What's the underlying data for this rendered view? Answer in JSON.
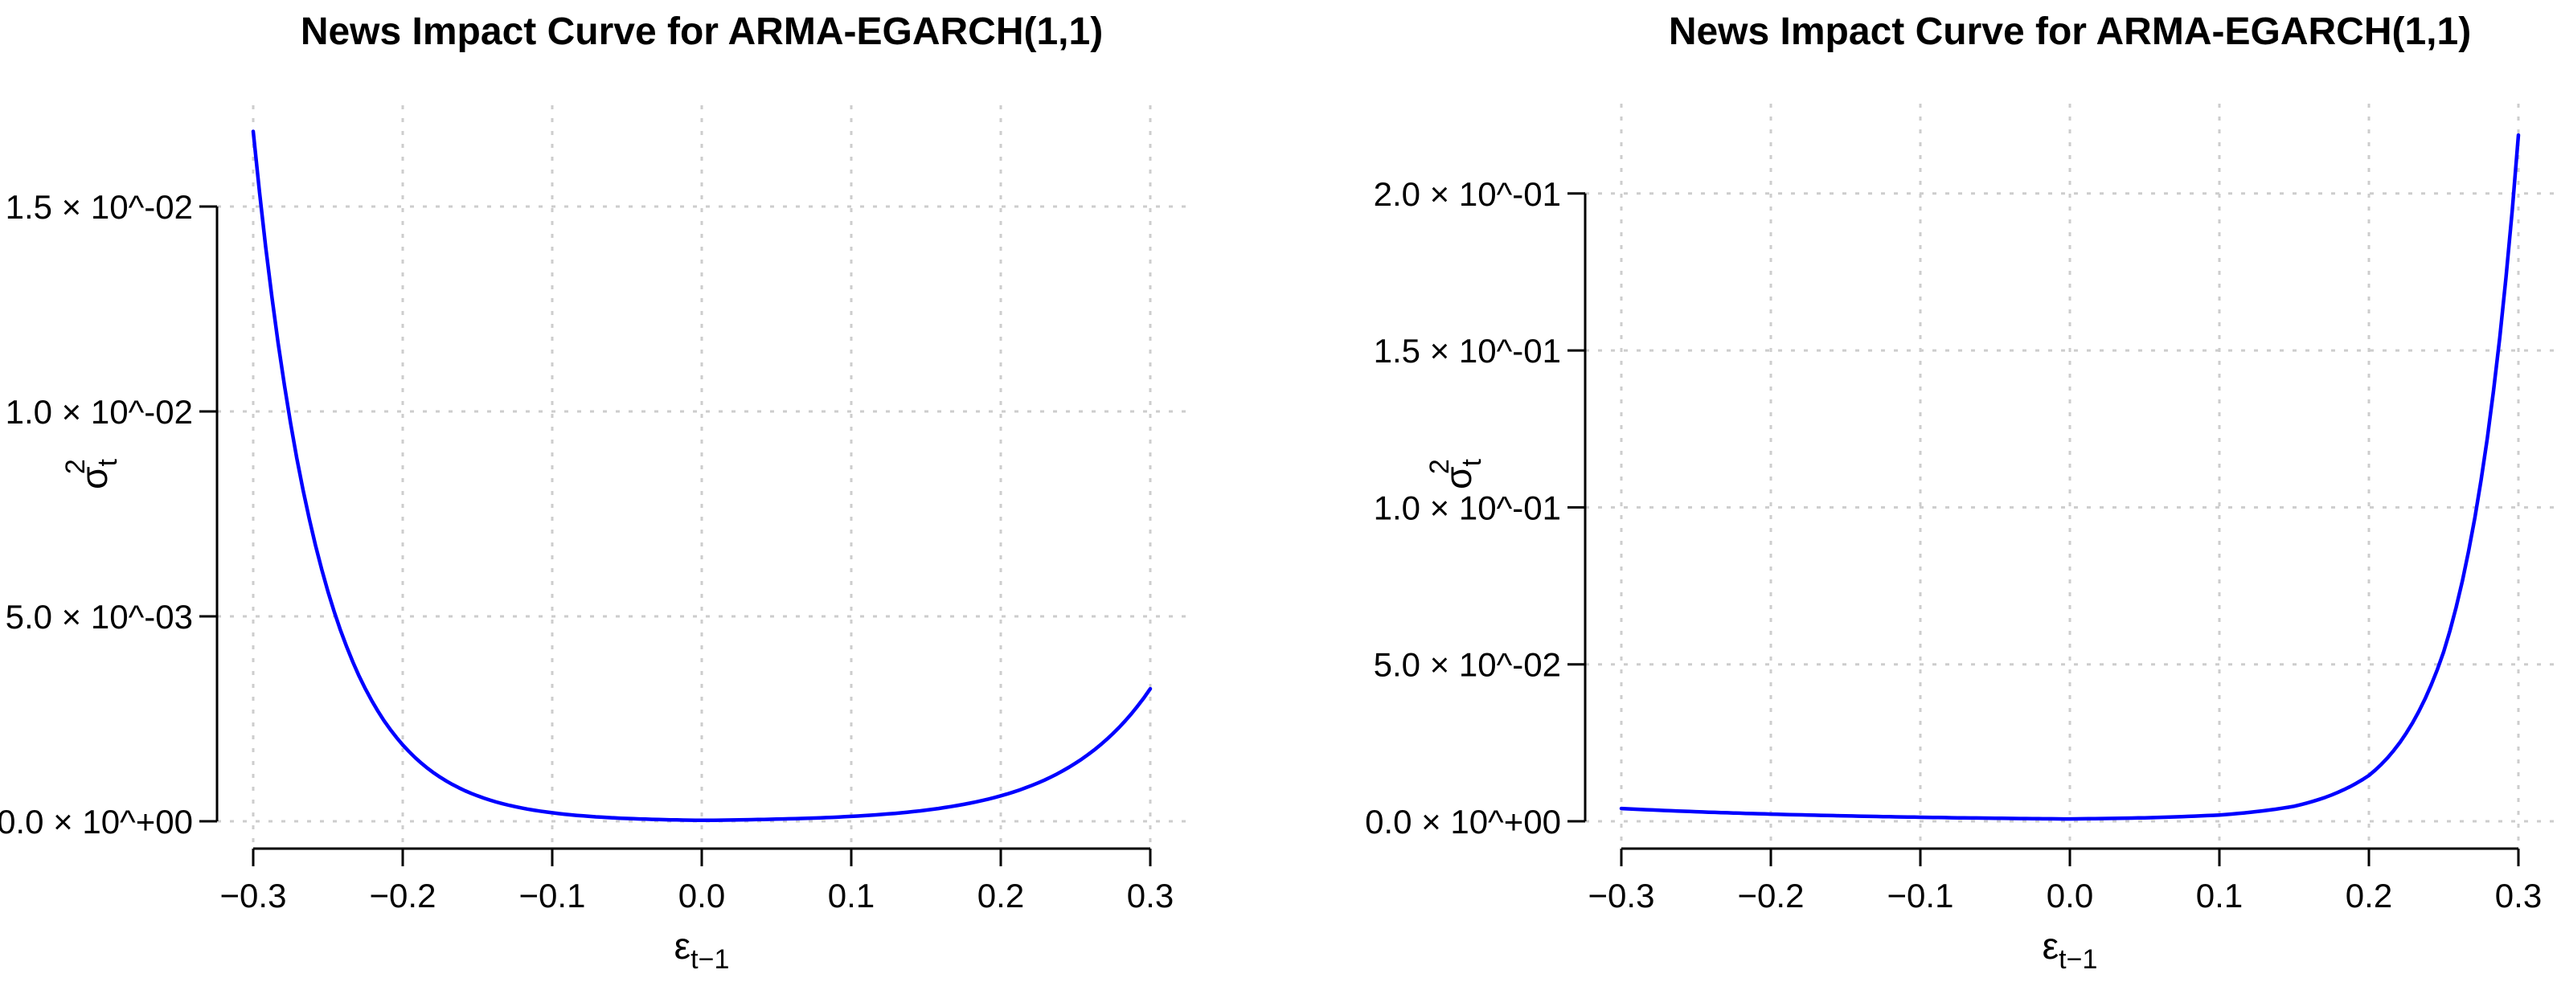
{
  "figure": {
    "background": "#ffffff",
    "grid_color": "#cdcdcd",
    "axis_color": "#000000",
    "text_color": "#000000"
  },
  "chart_data": [
    {
      "type": "line",
      "title": "News Impact Curve for ARMA-EGARCH(1,1)",
      "xlabel": "epsilon[t-1]",
      "xlabel_parts": {
        "main": "ε",
        "sub": "t−1"
      },
      "ylabel": "sigma[t]^2",
      "ylabel_parts": {
        "main": "σ",
        "sub": "t",
        "sup": "2"
      },
      "line_color": "#0000FF",
      "grid": true,
      "legend_position": "none",
      "x_range": [
        -0.3,
        0.3
      ],
      "y_range": [
        0,
        0.0168
      ],
      "x_ticks": {
        "values": [
          -0.3,
          -0.2,
          -0.1,
          0.0,
          0.1,
          0.2,
          0.3
        ],
        "labels": [
          "−0.3",
          "−0.2",
          "−0.1",
          "0.0",
          "0.1",
          "0.2",
          "0.3"
        ]
      },
      "y_ticks": {
        "values": [
          0,
          0.005,
          0.01,
          0.015
        ],
        "labels": [
          "0.0 × 10^+00",
          "5.0 × 10^-03",
          "1.0 × 10^-02",
          "1.5 × 10^-02"
        ]
      },
      "series": [
        {
          "name": "news_impact_curve_negative_leverage",
          "x": [
            -0.3,
            -0.275,
            -0.25,
            -0.225,
            -0.2,
            -0.175,
            -0.15,
            -0.125,
            -0.1,
            -0.075,
            -0.05,
            -0.025,
            0.0,
            0.025,
            0.05,
            0.075,
            0.1,
            0.125,
            0.15,
            0.175,
            0.2,
            0.225,
            0.25,
            0.275,
            0.3
          ],
          "y": [
            0.016834,
            0.009712,
            0.005603,
            0.003233,
            0.001865,
            0.001076,
            0.000621,
            0.000358,
            0.000207,
            0.000119,
            6.88e-05,
            3.97e-05,
            2.29e-05,
            3.46e-05,
            5.23e-05,
            7.89e-05,
            0.000119,
            0.00018,
            0.000272,
            0.000411,
            0.000621,
            0.000938,
            0.001417,
            0.00214,
            0.003233
          ]
        }
      ]
    },
    {
      "type": "line",
      "title": "News Impact Curve for ARMA-EGARCH(1,1)",
      "xlabel": "epsilon[t-1]",
      "xlabel_parts": {
        "main": "ε",
        "sub": "t−1"
      },
      "ylabel": "sigma[t]^2",
      "ylabel_parts": {
        "main": "σ",
        "sub": "t",
        "sup": "2"
      },
      "line_color": "#0000FF",
      "grid": true,
      "legend_position": "none",
      "x_range": [
        -0.3,
        0.3
      ],
      "y_range": [
        0,
        0.2186
      ],
      "x_ticks": {
        "values": [
          -0.3,
          -0.2,
          -0.1,
          0.0,
          0.1,
          0.2,
          0.3
        ],
        "labels": [
          "−0.3",
          "−0.2",
          "−0.1",
          "0.0",
          "0.1",
          "0.2",
          "0.3"
        ]
      },
      "y_ticks": {
        "values": [
          0,
          0.05,
          0.1,
          0.15,
          0.2
        ],
        "labels": [
          "0.0 × 10^+00",
          "5.0 × 10^-02",
          "1.0 × 10^-01",
          "1.5 × 10^-01",
          "2.0 × 10^-01"
        ]
      },
      "series": [
        {
          "name": "news_impact_curve_positive_leverage",
          "x": [
            -0.3,
            -0.275,
            -0.25,
            -0.225,
            -0.2,
            -0.175,
            -0.15,
            -0.125,
            -0.1,
            -0.075,
            -0.05,
            -0.025,
            0.0,
            0.025,
            0.05,
            0.075,
            0.1,
            0.125,
            0.15,
            0.175,
            0.2,
            0.225,
            0.25,
            0.275,
            0.3
          ],
          "y": [
            0.00406,
            0.00352,
            0.00304,
            0.00264,
            0.00229,
            0.00199,
            0.00172,
            0.00149,
            0.00129,
            0.00111,
            0.00097,
            0.00084,
            0.00073,
            0.0009,
            0.0011,
            0.00148,
            0.002,
            0.00309,
            0.0048,
            0.00838,
            0.0146,
            0.0281,
            0.054,
            0.1086,
            0.2186
          ]
        }
      ]
    }
  ]
}
